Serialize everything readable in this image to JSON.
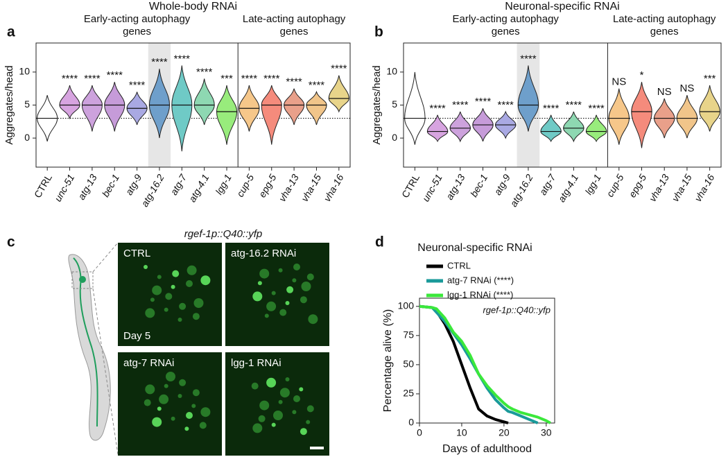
{
  "chart_data": [
    {
      "type": "violin",
      "panel_label": "a",
      "title": "Whole-body RNAi",
      "y_label": "Aggregates/head",
      "groups": [
        {
          "label": "Early-acting autophagy genes"
        },
        {
          "label": "Late-acting autophagy genes"
        }
      ],
      "categories": [
        "CTRL",
        "unc-51",
        "atg-13",
        "bec-1",
        "atg-9",
        "atg-16.2",
        "atg-7",
        "atg-4.1",
        "lgg-1",
        "cup-5",
        "epg-5",
        "vha-13",
        "vha-15",
        "vha-16"
      ],
      "values": [
        3,
        5,
        5,
        5,
        4.5,
        5,
        5,
        5,
        4,
        4.5,
        5,
        5,
        5,
        6
      ],
      "mins": [
        -0.5,
        3,
        1,
        1,
        2,
        0,
        -2,
        2,
        -1,
        1,
        -1,
        2,
        2,
        4
      ],
      "maxs": [
        6.5,
        8,
        8,
        8.5,
        7,
        10.5,
        11,
        9,
        8,
        8,
        8,
        7.5,
        7,
        9.5
      ],
      "significance": [
        null,
        "****",
        "****",
        "****",
        "****",
        "****",
        "****",
        "****",
        "***",
        "****",
        "****",
        "****",
        "****",
        "****"
      ],
      "colors": [
        "#ffffff",
        "#d7a4e0",
        "#cda2dd",
        "#c69bd9",
        "#a9a9e3",
        "#6e9fcb",
        "#6fcac6",
        "#8ed8b2",
        "#98ec7c",
        "#f6c78a",
        "#f58b7c",
        "#e9a08a",
        "#f1c58a",
        "#e8d48a"
      ],
      "ylim": [
        -4.4,
        14.4
      ],
      "yticks": [
        0,
        5,
        10
      ],
      "reference_line": 3,
      "highlight_category": "atg-16.2",
      "divider_after": "lgg-1"
    },
    {
      "type": "violin",
      "panel_label": "b",
      "title": "Neuronal-specific RNAi",
      "y_label": "Aggregates/head",
      "groups": [
        {
          "label": "Early-acting autophagy genes"
        },
        {
          "label": "Late-acting autophagy genes"
        }
      ],
      "categories": [
        "CTRL",
        "unc-51",
        "atg-13",
        "bec-1",
        "atg-9",
        "atg-16.2",
        "atg-7",
        "atg-4.1",
        "lgg-1",
        "cup-5",
        "epg-5",
        "vha-13",
        "vha-15",
        "vha-16"
      ],
      "values": [
        3,
        1,
        1.5,
        2,
        2,
        5,
        1,
        1.5,
        1,
        3,
        4,
        3,
        3,
        4
      ],
      "mins": [
        -1,
        -0.5,
        -0.5,
        -0.5,
        0,
        1,
        -0.5,
        -0.5,
        -0.5,
        -1,
        -1.5,
        0,
        0,
        1
      ],
      "maxs": [
        10,
        3.5,
        4,
        4.5,
        4,
        11,
        3.5,
        4,
        3.5,
        7.5,
        8.5,
        6,
        6.5,
        8
      ],
      "significance": [
        null,
        "****",
        "****",
        "****",
        "****",
        "****",
        "****",
        "****",
        "****",
        "NS",
        "*",
        "NS",
        "NS",
        "***"
      ],
      "colors": [
        "#ffffff",
        "#d7a4e0",
        "#cda2dd",
        "#c69bd9",
        "#a9a9e3",
        "#6e9fcb",
        "#6fcac6",
        "#8ed8b2",
        "#98ec7c",
        "#f6c78a",
        "#f58b7c",
        "#e9a08a",
        "#f1c58a",
        "#e8d48a"
      ],
      "ylim": [
        -4.4,
        14.4
      ],
      "yticks": [
        0,
        5,
        10
      ],
      "reference_line": 3,
      "highlight_category": "atg-16.2",
      "divider_after": "lgg-1"
    },
    {
      "type": "line",
      "panel_label": "d",
      "title": "Neuronal-specific RNAi",
      "annotation": "rgef-1p::Q40::yfp",
      "x_label": "Days of adulthood",
      "y_label": "Percentage alive (%)",
      "x": [
        0,
        3,
        4,
        6,
        8,
        10,
        12,
        14,
        16,
        18,
        20,
        21,
        22,
        24,
        26,
        28,
        30,
        31
      ],
      "series": [
        {
          "name": "CTRL",
          "color": "#000000",
          "values": [
            100,
            99,
            96,
            85,
            70,
            50,
            30,
            12,
            6,
            3,
            1,
            0,
            null,
            null,
            null,
            null,
            null,
            null
          ]
        },
        {
          "name": "atg-7 RNAi (****)",
          "color": "#1a9a9a",
          "values": [
            100,
            99,
            95,
            87,
            77,
            67,
            55,
            42,
            30,
            20,
            13,
            10,
            9,
            6,
            3,
            0,
            null,
            null
          ]
        },
        {
          "name": "lgg-1 RNAi (****)",
          "color": "#3be83b",
          "values": [
            100,
            99,
            98,
            90,
            78,
            70,
            58,
            42,
            32,
            24,
            17,
            14,
            12,
            9,
            7,
            5,
            2,
            0
          ]
        }
      ],
      "xlim": [
        0,
        32
      ],
      "xticks": [
        0,
        10,
        20,
        30
      ],
      "ylim": [
        0,
        107
      ],
      "yticks": [
        0,
        25,
        50,
        75,
        100
      ]
    }
  ],
  "panel_c": {
    "label": "c",
    "title": "rgef-1p::Q40::yfp",
    "images": [
      {
        "label": "CTRL",
        "note": "Day 5"
      },
      {
        "label": "atg-16.2 RNAi"
      },
      {
        "label": "atg-7 RNAi"
      },
      {
        "label": "lgg-1 RNAi"
      }
    ]
  }
}
